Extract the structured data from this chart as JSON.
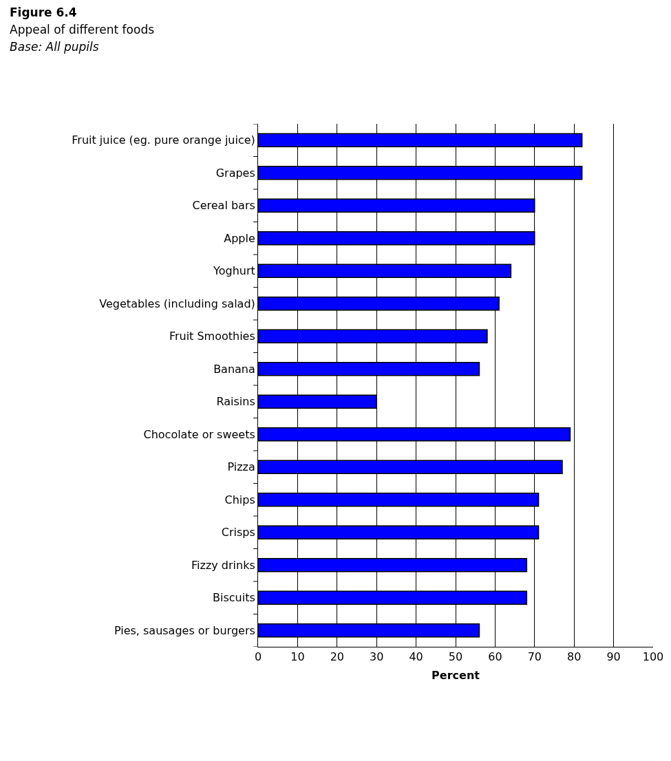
{
  "chart_data": {
    "type": "bar",
    "orientation": "horizontal",
    "title": "Figure 6.4",
    "subtitle": "Appeal of different foods",
    "annotations": [
      "Base: All pupils"
    ],
    "xlabel": "Percent",
    "categories": [
      "Fruit juice (eg. pure orange juice)",
      "Grapes",
      "Cereal bars",
      "Apple",
      "Yoghurt",
      "Vegetables (including salad)",
      "Fruit Smoothies",
      "Banana",
      "Raisins",
      "Chocolate or sweets",
      "Pizza",
      "Chips",
      "Crisps",
      "Fizzy drinks",
      "Biscuits",
      "Pies, sausages or burgers"
    ],
    "values": [
      82,
      82,
      70,
      70,
      64,
      61,
      58,
      56,
      30,
      79,
      77,
      71,
      71,
      68,
      68,
      56
    ],
    "color": "#0000ff",
    "xlim": [
      0,
      100
    ],
    "xticks": [
      0,
      10,
      20,
      30,
      40,
      50,
      60,
      70,
      80,
      90,
      100
    ],
    "grid": "x",
    "legend": false
  }
}
